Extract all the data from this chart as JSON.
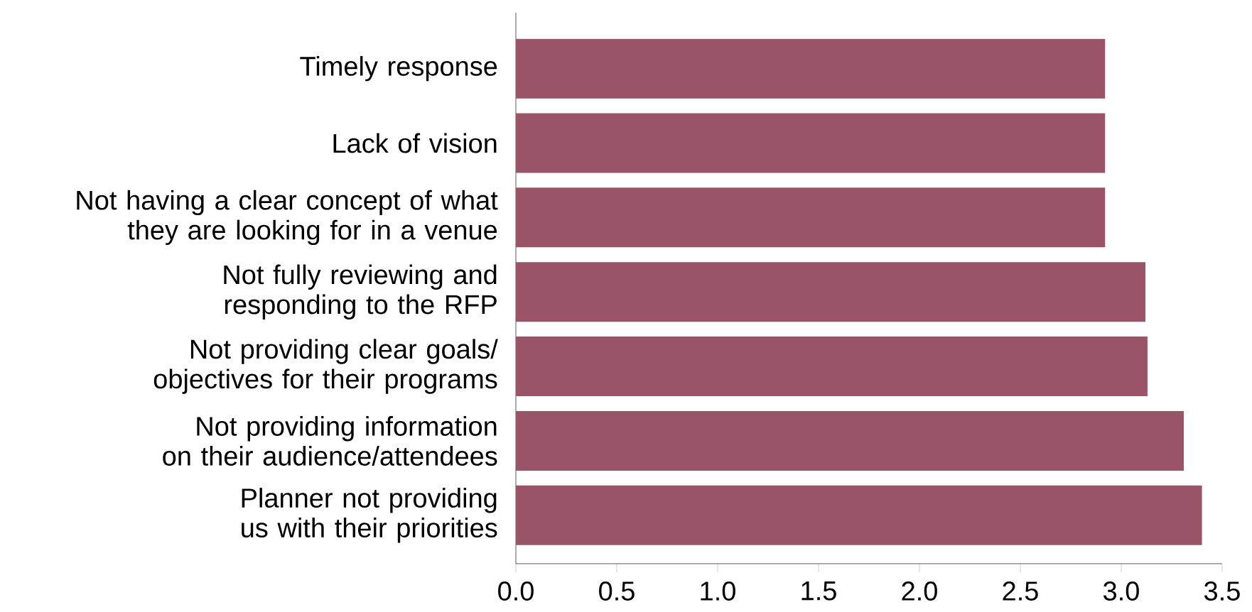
{
  "chart_data": {
    "type": "bar",
    "orientation": "horizontal",
    "categories": [
      "Timely response",
      "Lack of vision",
      "Not having a clear concept of what they are looking for in a venue",
      "Not fully reviewing and responding to the RFP",
      "Not providing clear goals/ objectives for their programs",
      "Not providing information on their audience/attendees",
      "Planner not providing us with their priorities"
    ],
    "values": [
      2.92,
      2.92,
      2.92,
      3.12,
      3.13,
      3.31,
      3.4
    ],
    "color": "#9a5468",
    "xlim": [
      0,
      3.5
    ],
    "xticks": [
      {
        "value": 0,
        "label": "0.0"
      },
      {
        "value": 0.5,
        "label": "0.5"
      },
      {
        "value": 1,
        "label": "1.0"
      },
      {
        "value": 1.5,
        "label": "1.5"
      },
      {
        "value": 2,
        "label": "2.0"
      },
      {
        "value": 2.5,
        "label": "2.5"
      },
      {
        "value": 3,
        "label": "3.0"
      },
      {
        "value": 3.5,
        "label": "3.5"
      }
    ],
    "grid": false
  }
}
